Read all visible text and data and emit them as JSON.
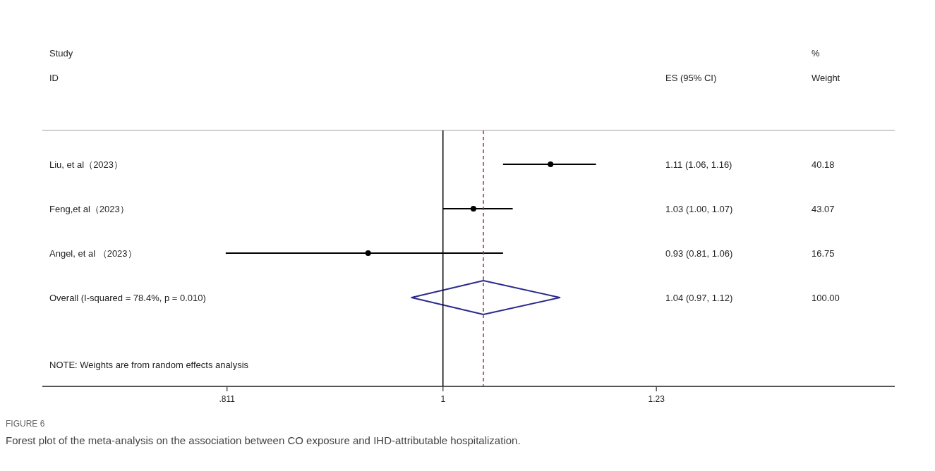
{
  "chart_data": {
    "type": "scatter",
    "orientation": "horizontal",
    "log": "x",
    "categories": [
      "Liu, et al（2023）",
      "Feng,et al（2023）",
      "Angel,  et al （2023）",
      "Overall  (I-squared = 78.4%, p = 0.010)"
    ],
    "series": [
      {
        "color": "#000000",
        "marker": "circle",
        "values": [
          1.11,
          1.03,
          0.93,
          null
        ],
        "errors": [
          [
            1.06,
            1.16
          ],
          [
            1.0,
            1.07
          ],
          [
            0.81,
            1.06
          ],
          null
        ]
      }
    ],
    "xlim": [
      0.678,
      1.55
    ],
    "xticks": [
      {
        "value": 0.811,
        "label": ".811"
      },
      1,
      {
        "value": 1.23,
        "label": "1.23"
      }
    ],
    "ref_lines": [
      {
        "axis": "x",
        "value": 1,
        "color": "#000000",
        "line_style": "solid"
      },
      {
        "axis": "x",
        "value": 1.04,
        "color": "#a33a3a",
        "line_style": "dashed"
      }
    ],
    "annotations": [
      "Study",
      "ID",
      "%",
      "ES (95% CI)",
      "Weight",
      "NOTE: Weights are from random effects analysis",
      "FIGURE 6",
      "Forest plot of the meta-analysis on the association between CO exposure and IHD-attributable hospitalization.",
      "1.11 (1.06, 1.16)",
      "40.18",
      "1.03 (1.00, 1.07)",
      "43.07",
      "0.93 (0.81, 1.06)",
      "16.75",
      "1.04 (0.97, 1.12)",
      "100.00"
    ]
  }
}
